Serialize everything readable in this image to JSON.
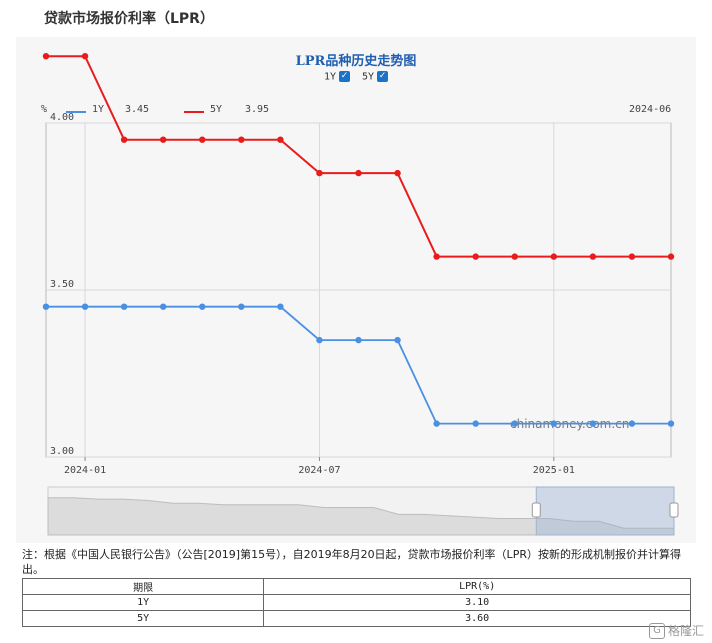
{
  "page": {
    "title": "贷款市场报价利率（LPR）"
  },
  "chart_data": {
    "type": "line",
    "title": "LPR品种历史走势图",
    "unit_label": "%",
    "period_label": "2024-06",
    "watermark": "chinamoney.com.cn",
    "toggles": [
      {
        "label": "1Y",
        "checked": true
      },
      {
        "label": "5Y",
        "checked": true
      }
    ],
    "legend": [
      {
        "name": "1Y",
        "value": "3.45",
        "color": "#4a90e2"
      },
      {
        "name": "5Y",
        "value": "3.95",
        "color": "#e81c1c"
      }
    ],
    "x": [
      "2023-12",
      "2024-01",
      "2024-02",
      "2024-03",
      "2024-04",
      "2024-05",
      "2024-06",
      "2024-07",
      "2024-08",
      "2024-09",
      "2024-10",
      "2024-11",
      "2024-12",
      "2025-01",
      "2025-02",
      "2025-03",
      "2025-04"
    ],
    "x_tick_labels": [
      "2024-01",
      "2024-07",
      "2025-01"
    ],
    "y_tick_labels": [
      "4.00",
      "3.50",
      "3.00"
    ],
    "ylim": [
      3.0,
      4.0
    ],
    "series": [
      {
        "name": "1Y",
        "color": "#4a90e2",
        "values": [
          3.45,
          3.45,
          3.45,
          3.45,
          3.45,
          3.45,
          3.45,
          3.35,
          3.35,
          3.35,
          3.1,
          3.1,
          3.1,
          3.1,
          3.1,
          3.1,
          3.1
        ]
      },
      {
        "name": "5Y",
        "color": "#e81c1c",
        "values": [
          4.2,
          4.2,
          3.95,
          3.95,
          3.95,
          3.95,
          3.95,
          3.85,
          3.85,
          3.85,
          3.6,
          3.6,
          3.6,
          3.6,
          3.6,
          3.6,
          3.6
        ]
      }
    ],
    "grid": true,
    "legend_position": "top-left",
    "zoom_window": {
      "start_fraction": 0.78,
      "end_fraction": 1.0
    }
  },
  "notes": {
    "text": "注：根据《中国人民银行公告》（公告[2019]第15号），自2019年8月20日起，贷款市场报价利率（LPR）按新的形成机制报价并计算得出。"
  },
  "table": {
    "headers": [
      "期限",
      "LPR(%)"
    ],
    "rows": [
      {
        "term": "1Y",
        "rate": "3.10"
      },
      {
        "term": "5Y",
        "rate": "3.60"
      }
    ]
  },
  "brand": {
    "text": "格隆汇"
  }
}
